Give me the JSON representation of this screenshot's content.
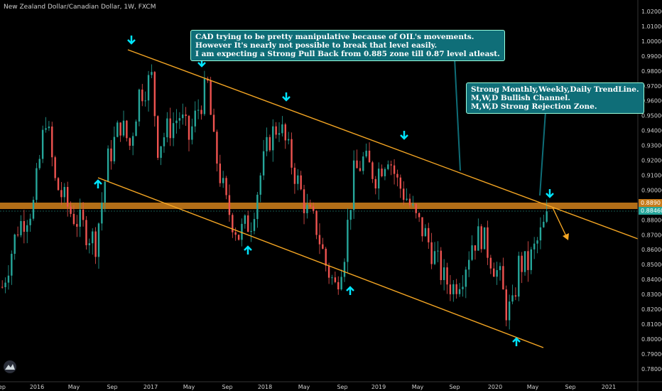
{
  "chart_data": {
    "type": "candlestick",
    "title": "New Zealand Dollar/Canadian Dollar, 1W, FXCM",
    "y_ticks": [
      "1.02000",
      "1.01000",
      "1.00000",
      "0.99000",
      "0.98000",
      "0.97000",
      "0.96000",
      "0.95000",
      "0.94000",
      "0.93000",
      "0.92000",
      "0.91000",
      "0.90000",
      "0.89000",
      "0.88000",
      "0.87000",
      "0.86000",
      "0.85000",
      "0.84000",
      "0.83000",
      "0.82000",
      "0.81000",
      "0.80000",
      "0.79000",
      "0.78000"
    ],
    "ylim": [
      0.775,
      1.025
    ],
    "x_ticks": [
      "ep",
      "2016",
      "May",
      "Sep",
      "2017",
      "May",
      "Sep",
      "2018",
      "May",
      "Sep",
      "2019",
      "May",
      "Sep",
      "2020",
      "May",
      "Sep",
      "2021"
    ],
    "current_price": "0.88460",
    "zone_price": "0.8890",
    "colors": {
      "up": "#26a69a",
      "down": "#ef5350",
      "zone": "#c77a1a",
      "trend": "#f5a623",
      "arrow": "#00e5ff",
      "note": "#0f6e78"
    },
    "annotations": [
      "CAD trying to be pretty manipulative because of OIL's movements.\nHowever It's nearly not possible to break that level easily.\nI am expecting a Strong Pull Back from 0.885 zone till 0.87 level atleast.",
      "Strong Monthly,Weekly,Daily TrendLine.\nM,W,D Bullish Channel.\nM,W,D Strong Rejection Zone."
    ]
  }
}
